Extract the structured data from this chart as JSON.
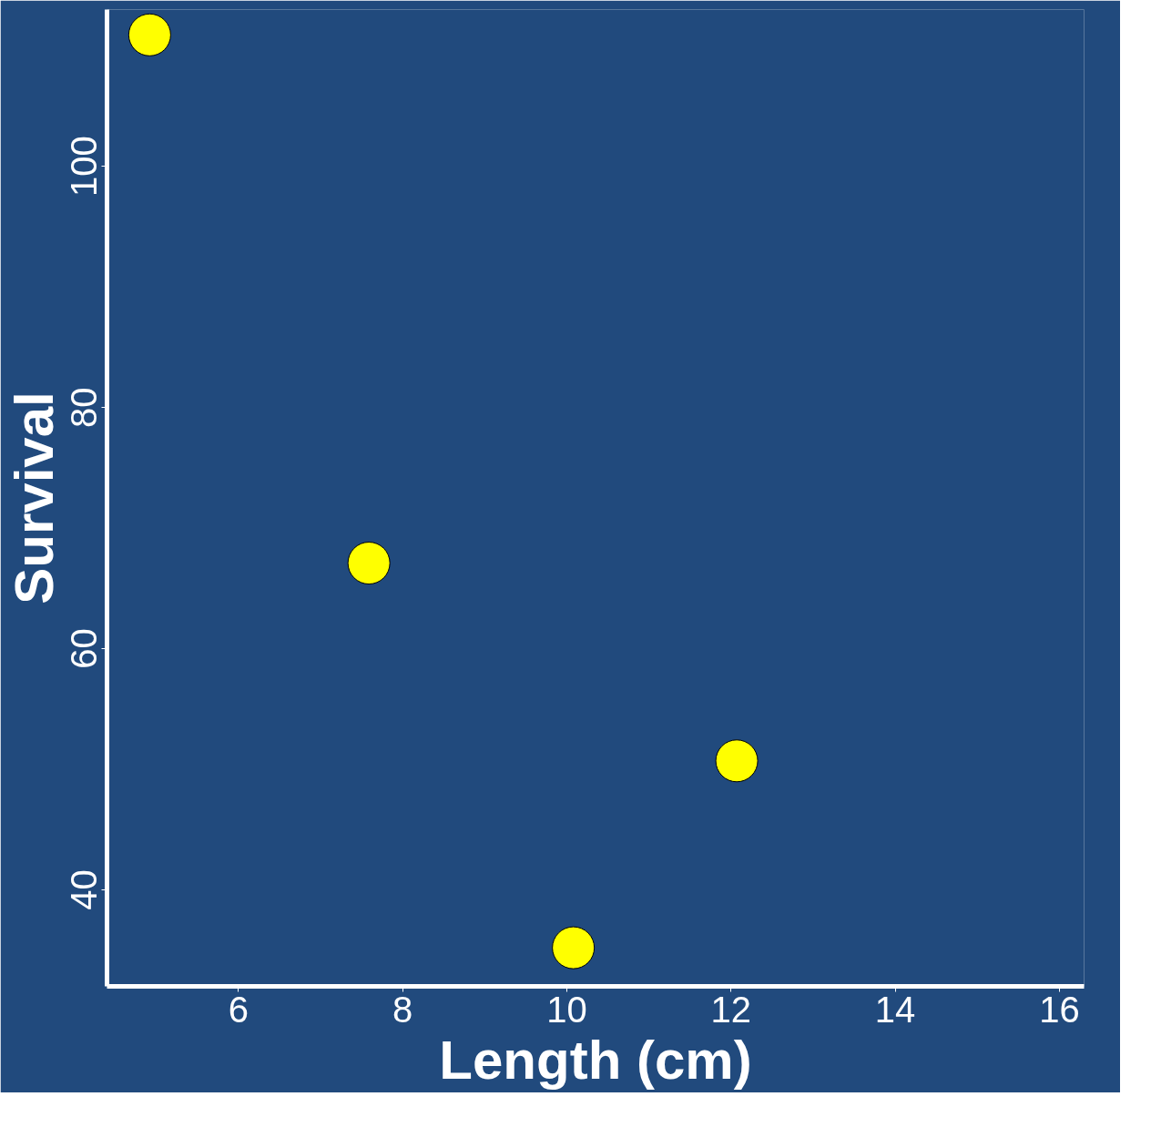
{
  "chart_data": {
    "type": "scatter",
    "xlabel": "Length (cm)",
    "ylabel": "Survival",
    "x": [
      4.92,
      7.59,
      12.07,
      10.08
    ],
    "values": [
      110.9,
      67.1,
      50.7,
      35.2
    ],
    "color": "#ffff00",
    "marker": "circle",
    "xlim": [
      4.4,
      16.3
    ],
    "ylim": [
      32,
      113
    ],
    "xticks": [
      6,
      8,
      10,
      12,
      14,
      16
    ],
    "yticks": [
      40,
      60,
      80,
      100
    ],
    "grid": false
  }
}
